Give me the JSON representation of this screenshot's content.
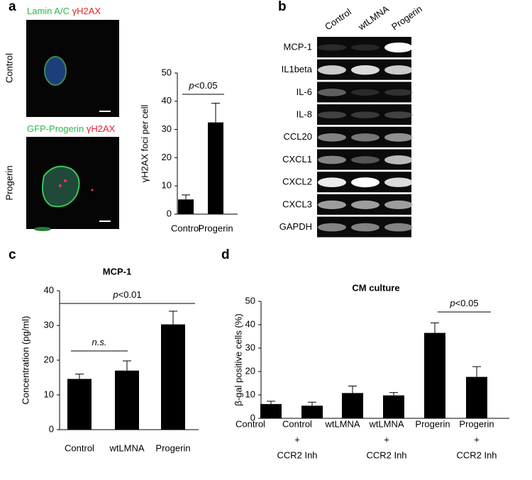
{
  "panel_labels": [
    "a",
    "b",
    "c",
    "d"
  ],
  "microscopy": {
    "rows": [
      {
        "label": "Control",
        "stain_green": "Lamin  A/C",
        "stain_red": "γH2AX"
      },
      {
        "label": "Progerin",
        "stain_green": "GFP-Progerin",
        "stain_red": "γH2AX"
      }
    ]
  },
  "gel": {
    "lanes": [
      "Control",
      "wtLMNA",
      "Progerin"
    ],
    "genes": [
      "MCP-1",
      "IL1beta",
      "IL-6",
      "IL-8",
      "CCL20",
      "CXCL1",
      "CXCL2",
      "CXCL3",
      "GAPDH"
    ]
  },
  "chart_data": [
    {
      "type": "bar",
      "ylabel": "γH2AX foci per cell",
      "categories": [
        "Control",
        "Progerin"
      ],
      "values": [
        5.2,
        32.5
      ],
      "errors": [
        1.6,
        6.8
      ],
      "color": "#000000",
      "ylim": [
        0,
        50
      ],
      "yticks": [
        0,
        10,
        20,
        30,
        40,
        50
      ],
      "annotations": [
        {
          "italic": "p",
          "text": "<0.05"
        }
      ]
    },
    {
      "type": "bar",
      "title": "MCP-1",
      "ylabel": "Concentration (pg/ml)",
      "categories": [
        "Control",
        "wtLMNA",
        "Progerin"
      ],
      "values": [
        14.6,
        17.0,
        30.3
      ],
      "errors": [
        1.4,
        2.8,
        3.8
      ],
      "color": "#000000",
      "ylim": [
        0,
        40
      ],
      "yticks": [
        0,
        10,
        20,
        30,
        40
      ],
      "annotations": [
        {
          "italic": "p",
          "text": "<0.01"
        },
        {
          "italic": "n.s."
        }
      ]
    },
    {
      "type": "bar",
      "title": "CM culture",
      "ylabel": "β-gal positive cells (%)",
      "categories": [
        "Control",
        "Control",
        "wtLMNA",
        "wtLMNA",
        "Progerin",
        "Progerin"
      ],
      "treatments": [
        null,
        [
          "+",
          "CCR2 Inh"
        ],
        null,
        [
          "+",
          "CCR2 Inh"
        ],
        null,
        [
          "+",
          "CCR2 Inh"
        ]
      ],
      "values": [
        6.1,
        5.4,
        10.8,
        9.8,
        36.5,
        17.7
      ],
      "errors": [
        1.2,
        1.5,
        3.0,
        1.2,
        4.3,
        4.4
      ],
      "color": "#000000",
      "ylim": [
        0,
        50
      ],
      "yticks": [
        0,
        10,
        20,
        30,
        40,
        50
      ],
      "annotations": [
        {
          "italic": "p",
          "text": "<0.05"
        }
      ]
    }
  ]
}
